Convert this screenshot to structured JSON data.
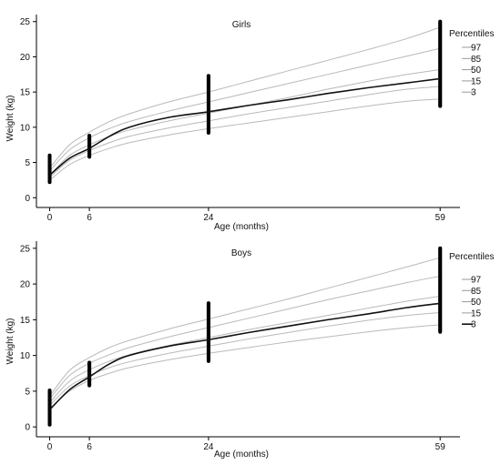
{
  "chart_data": [
    {
      "type": "line",
      "title": "Girls",
      "xlabel": "Age (months)",
      "ylabel": "Weight (kg)",
      "xticks": [
        0,
        6,
        24,
        59
      ],
      "yticks": [
        0,
        5,
        10,
        15,
        20,
        25
      ],
      "xlim": [
        -2,
        62
      ],
      "ylim": [
        -1,
        26
      ],
      "legend_title": "Percentiles",
      "legend_position": "right",
      "x": [
        0,
        3,
        6,
        9,
        12,
        18,
        24,
        30,
        36,
        42,
        48,
        54,
        59
      ],
      "series": [
        {
          "name": "97",
          "values": [
            4.2,
            7.5,
            9.3,
            10.8,
            11.9,
            13.6,
            15.0,
            16.5,
            18.0,
            19.5,
            21.0,
            22.6,
            24.2
          ]
        },
        {
          "name": "85",
          "values": [
            3.8,
            6.8,
            8.5,
            9.8,
            10.8,
            12.3,
            13.6,
            14.9,
            16.2,
            17.5,
            18.8,
            20.1,
            21.2
          ]
        },
        {
          "name": "50",
          "values": [
            3.2,
            6.0,
            7.5,
            8.7,
            9.6,
            10.9,
            12.0,
            13.1,
            14.2,
            15.4,
            16.5,
            17.5,
            18.2
          ]
        },
        {
          "name": "15",
          "values": [
            2.9,
            5.3,
            6.7,
            7.8,
            8.7,
            9.9,
            10.9,
            11.9,
            12.8,
            13.7,
            14.6,
            15.4,
            15.8
          ]
        },
        {
          "name": "3",
          "values": [
            2.5,
            4.7,
            6.0,
            7.0,
            7.8,
            8.9,
            9.8,
            10.6,
            11.4,
            12.2,
            13.0,
            13.7,
            14.0
          ]
        }
      ],
      "median_curve": {
        "values": [
          3.2,
          5.6,
          7.0,
          8.7,
          10.0,
          11.4,
          12.2,
          13.1,
          13.9,
          14.8,
          15.6,
          16.3,
          16.9
        ]
      },
      "observations": [
        {
          "x": 0,
          "min": 2.2,
          "max": 6.0
        },
        {
          "x": 6,
          "min": 5.8,
          "max": 8.8
        },
        {
          "x": 24,
          "min": 9.2,
          "max": 17.3
        },
        {
          "x": 59,
          "min": 13.0,
          "max": 25.0
        }
      ]
    },
    {
      "type": "line",
      "title": "Boys",
      "xlabel": "Age (months)",
      "ylabel": "Weight (kg)",
      "xticks": [
        0,
        6,
        24,
        59
      ],
      "yticks": [
        0,
        5,
        10,
        15,
        20,
        25
      ],
      "xlim": [
        -2,
        62
      ],
      "ylim": [
        -1,
        26
      ],
      "legend_title": "Percentiles",
      "legend_position": "right",
      "x": [
        0,
        3,
        6,
        9,
        12,
        18,
        24,
        30,
        36,
        42,
        48,
        54,
        59
      ],
      "series": [
        {
          "name": "97",
          "values": [
            4.3,
            7.9,
            9.7,
            11.1,
            12.1,
            13.7,
            15.1,
            16.5,
            17.9,
            19.4,
            20.9,
            22.4,
            23.7
          ]
        },
        {
          "name": "85",
          "values": [
            3.9,
            7.2,
            8.9,
            10.1,
            11.1,
            12.6,
            13.9,
            15.2,
            16.5,
            17.8,
            19.0,
            20.2,
            21.1
          ]
        },
        {
          "name": "50",
          "values": [
            3.4,
            6.4,
            8.0,
            9.2,
            10.1,
            11.4,
            12.5,
            13.6,
            14.6,
            15.6,
            16.6,
            17.6,
            18.3
          ]
        },
        {
          "name": "15",
          "values": [
            3.0,
            5.7,
            7.2,
            8.3,
            9.1,
            10.3,
            11.3,
            12.3,
            13.2,
            14.1,
            14.9,
            15.6,
            16.0
          ]
        },
        {
          "name": "3",
          "values": [
            2.6,
            5.0,
            6.5,
            7.5,
            8.3,
            9.4,
            10.3,
            11.1,
            11.9,
            12.6,
            13.3,
            13.9,
            14.3
          ]
        }
      ],
      "median_curve": {
        "values": [
          2.4,
          5.2,
          7.0,
          8.8,
          10.0,
          11.3,
          12.2,
          13.2,
          14.1,
          15.0,
          15.8,
          16.7,
          17.3
        ]
      },
      "observations": [
        {
          "x": 0,
          "min": 0.3,
          "max": 5.1
        },
        {
          "x": 6,
          "min": 5.8,
          "max": 9.0
        },
        {
          "x": 24,
          "min": 9.2,
          "max": 17.3
        },
        {
          "x": 59,
          "min": 13.3,
          "max": 25.0
        }
      ]
    }
  ]
}
